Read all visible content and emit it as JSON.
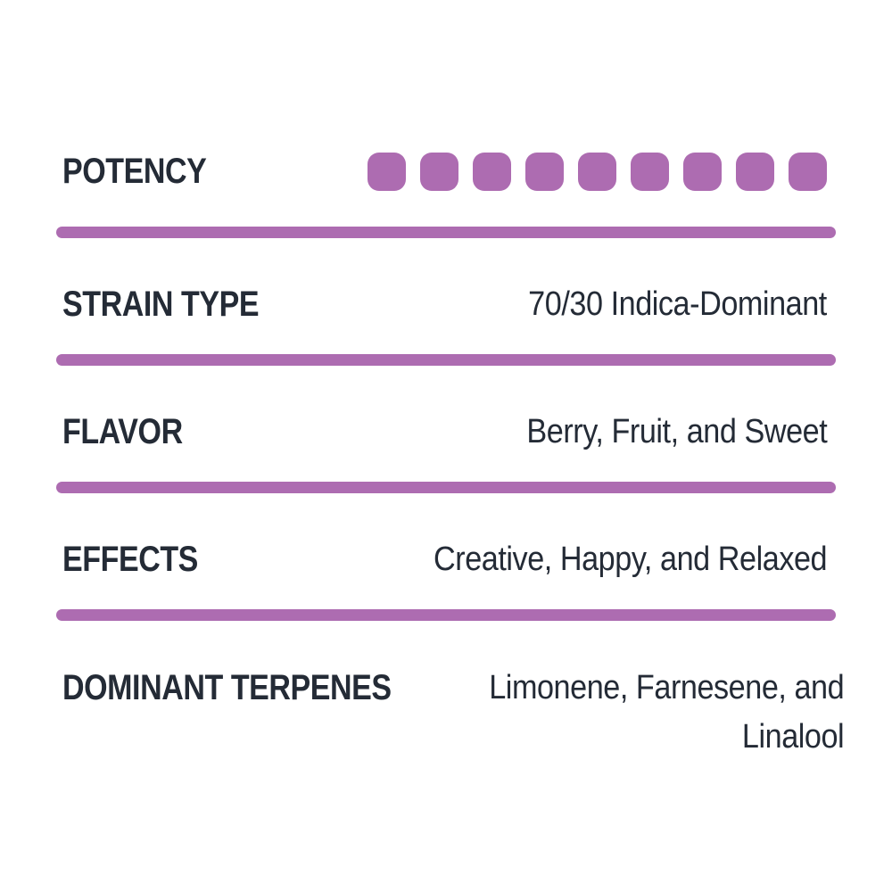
{
  "theme": {
    "accent_purple": "#AD6CB1",
    "text_color": "#242B36",
    "background": "#FFFFFF"
  },
  "rows": [
    {
      "id": "potency",
      "label": "POTENCY",
      "type": "squares",
      "squares_filled": 9
    },
    {
      "id": "strain-type",
      "label": "STRAIN TYPE",
      "value": "70/30 Indica-Dominant"
    },
    {
      "id": "flavor",
      "label": "FLAVOR",
      "value": "Berry, Fruit, and Sweet"
    },
    {
      "id": "effects",
      "label": "EFFECTS",
      "value": "Creative, Happy, and Relaxed"
    },
    {
      "id": "dominant-terpenes",
      "label": "DOMINANT TERPENES",
      "value": "Limonene, Farnesene, and Linalool",
      "value_lines": [
        "Limonene, Farnesene, and",
        "Linalool"
      ]
    }
  ]
}
